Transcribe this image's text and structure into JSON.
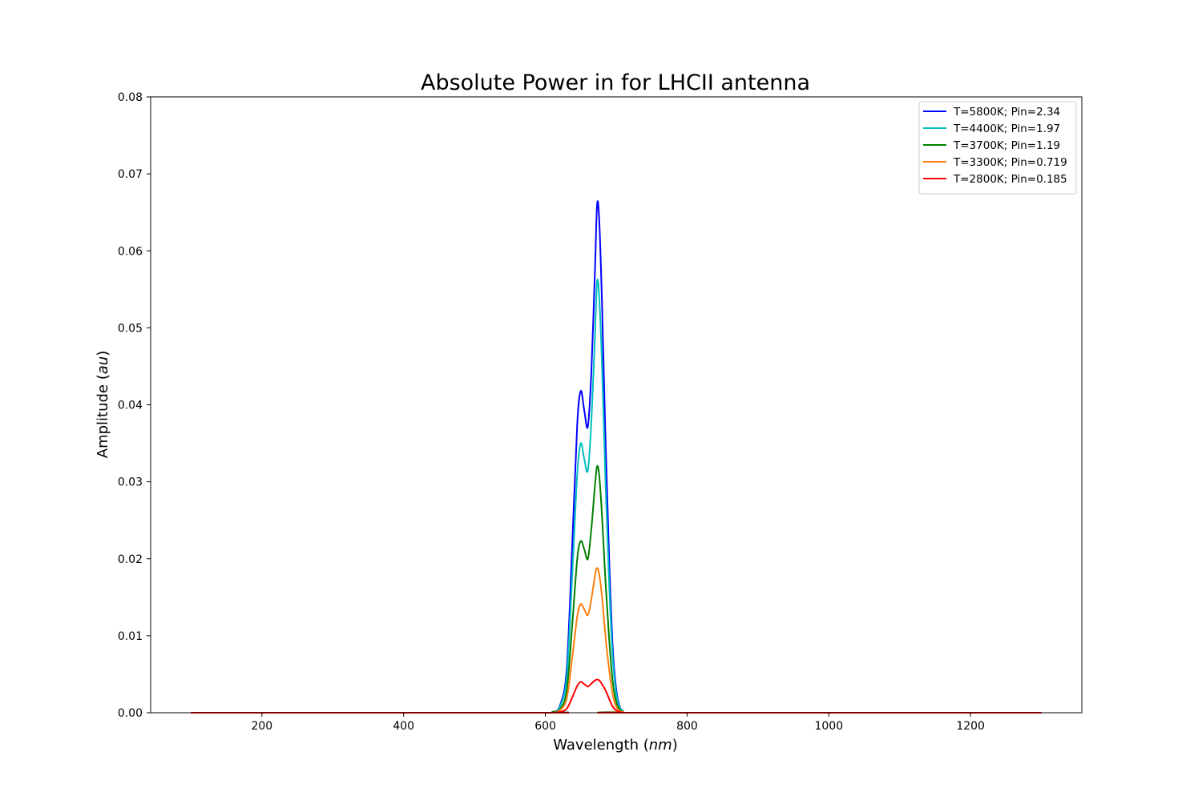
{
  "chart_data": {
    "type": "line",
    "title": "Absolute Power in for LHCII antenna",
    "xlabel_prefix": "Wavelength (",
    "xlabel_unit": "nm",
    "xlabel_suffix": ")",
    "ylabel_prefix": "Amplitude (",
    "ylabel_unit": "au",
    "ylabel_suffix": ")",
    "xlim": [
      43,
      1357
    ],
    "ylim": [
      0,
      0.08
    ],
    "x_ticks": [
      200,
      400,
      600,
      800,
      1000,
      1200
    ],
    "x_tick_labels": [
      "200",
      "400",
      "600",
      "800",
      "1000",
      "1200"
    ],
    "y_ticks": [
      0,
      0.01,
      0.02,
      0.03,
      0.04,
      0.05,
      0.06,
      0.07,
      0.08
    ],
    "y_tick_labels": [
      "0.00",
      "0.01",
      "0.02",
      "0.03",
      "0.04",
      "0.05",
      "0.06",
      "0.07",
      "0.08"
    ],
    "grid": false,
    "legend_position": "top-right",
    "series": [
      {
        "name": "T=5800K; Pin=2.34",
        "color": "#0000ff",
        "x": [
          100,
          590,
          610,
          620,
          630,
          638,
          645,
          650,
          655,
          660,
          665,
          670,
          673,
          676,
          680,
          685,
          690,
          695,
          700,
          705,
          710,
          720,
          1300
        ],
        "y": [
          0,
          0,
          0.0001,
          0.0008,
          0.0055,
          0.022,
          0.0375,
          0.0418,
          0.0392,
          0.0372,
          0.0445,
          0.0575,
          0.066,
          0.064,
          0.053,
          0.035,
          0.02,
          0.0085,
          0.003,
          0.0008,
          0.0002,
          0,
          0
        ]
      },
      {
        "name": "T=4400K; Pin=1.97",
        "color": "#00bfbf",
        "x": [
          100,
          590,
          610,
          620,
          630,
          638,
          645,
          650,
          655,
          660,
          665,
          670,
          673,
          676,
          680,
          685,
          690,
          695,
          700,
          705,
          710,
          720,
          1300
        ],
        "y": [
          0,
          0,
          0.0001,
          0.0007,
          0.0045,
          0.018,
          0.031,
          0.035,
          0.0329,
          0.0315,
          0.038,
          0.049,
          0.056,
          0.054,
          0.045,
          0.0295,
          0.0168,
          0.0072,
          0.0025,
          0.0007,
          0.0002,
          0,
          0
        ]
      },
      {
        "name": "T=3700K; Pin=1.19",
        "color": "#008000",
        "x": [
          100,
          590,
          610,
          620,
          630,
          638,
          645,
          650,
          655,
          660,
          665,
          670,
          673,
          676,
          680,
          685,
          690,
          695,
          700,
          705,
          710,
          720,
          1300
        ],
        "y": [
          0,
          0,
          0.0001,
          0.0004,
          0.0028,
          0.0115,
          0.02,
          0.0223,
          0.0212,
          0.02,
          0.024,
          0.0295,
          0.032,
          0.0308,
          0.0255,
          0.0168,
          0.0096,
          0.0041,
          0.0014,
          0.0004,
          0.0001,
          0,
          0
        ]
      },
      {
        "name": "T=3300K; Pin=0.719",
        "color": "#ff7f0e",
        "x": [
          100,
          590,
          610,
          620,
          630,
          638,
          645,
          650,
          655,
          660,
          665,
          670,
          673,
          676,
          680,
          685,
          690,
          695,
          700,
          705,
          710,
          720,
          1300
        ],
        "y": [
          0,
          0,
          0,
          0.0003,
          0.0018,
          0.0072,
          0.0125,
          0.0141,
          0.0134,
          0.0127,
          0.0148,
          0.0178,
          0.0188,
          0.018,
          0.015,
          0.0098,
          0.0056,
          0.0024,
          0.0008,
          0.0002,
          0.0001,
          0,
          0
        ]
      },
      {
        "name": "T=2800K; Pin=0.185",
        "color": "#ff0000",
        "x": [
          100,
          590,
          610,
          620,
          630,
          638,
          645,
          650,
          655,
          660,
          665,
          670,
          673,
          676,
          680,
          685,
          690,
          695,
          700,
          705,
          710,
          720,
          1300
        ],
        "y": [
          0,
          0,
          0,
          0.0001,
          0.0005,
          0.002,
          0.0035,
          0.004,
          0.0037,
          0.0034,
          0.0038,
          0.0042,
          0.0043,
          0.0042,
          0.0037,
          0.0029,
          0.0018,
          0.0008,
          0.0003,
          0.0001,
          0,
          0,
          0
        ]
      }
    ]
  }
}
